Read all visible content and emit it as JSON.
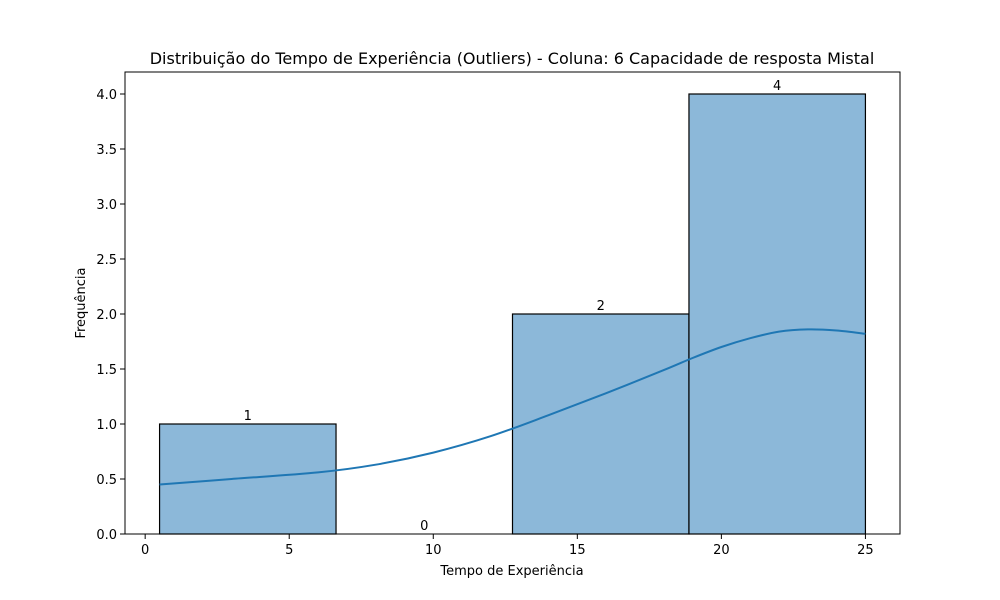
{
  "chart_data": {
    "type": "bar",
    "title": "Distribuição do Tempo de Experiência (Outliers) - Coluna: 6 Capacidade de resposta Mistal",
    "xlabel": "Tempo de Experiência",
    "ylabel": "Frequência",
    "xlim": [
      -0.7,
      26.2
    ],
    "ylim": [
      0,
      4.2
    ],
    "xticks": [
      0,
      5,
      10,
      15,
      20,
      25
    ],
    "yticks": [
      "0.0",
      "0.5",
      "1.0",
      "1.5",
      "2.0",
      "2.5",
      "3.0",
      "3.5",
      "4.0"
    ],
    "bins": [
      {
        "x0": 0.5,
        "x1": 6.625,
        "count": 1,
        "label": "1"
      },
      {
        "x0": 6.625,
        "x1": 12.75,
        "count": 0,
        "label": "0"
      },
      {
        "x0": 12.75,
        "x1": 18.875,
        "count": 2,
        "label": "2"
      },
      {
        "x0": 18.875,
        "x1": 25.0,
        "count": 4,
        "label": "4"
      }
    ],
    "kde": {
      "x": [
        0.5,
        3,
        6,
        8,
        10,
        12,
        14,
        16,
        18,
        19,
        20,
        21,
        22,
        23,
        24,
        25
      ],
      "y": [
        0.45,
        0.5,
        0.56,
        0.63,
        0.74,
        0.89,
        1.08,
        1.28,
        1.49,
        1.6,
        1.7,
        1.78,
        1.84,
        1.86,
        1.85,
        1.82
      ]
    },
    "bar_color": "#8cb8d9",
    "kde_color": "#1f77b4",
    "grid": false,
    "legend": "none"
  }
}
